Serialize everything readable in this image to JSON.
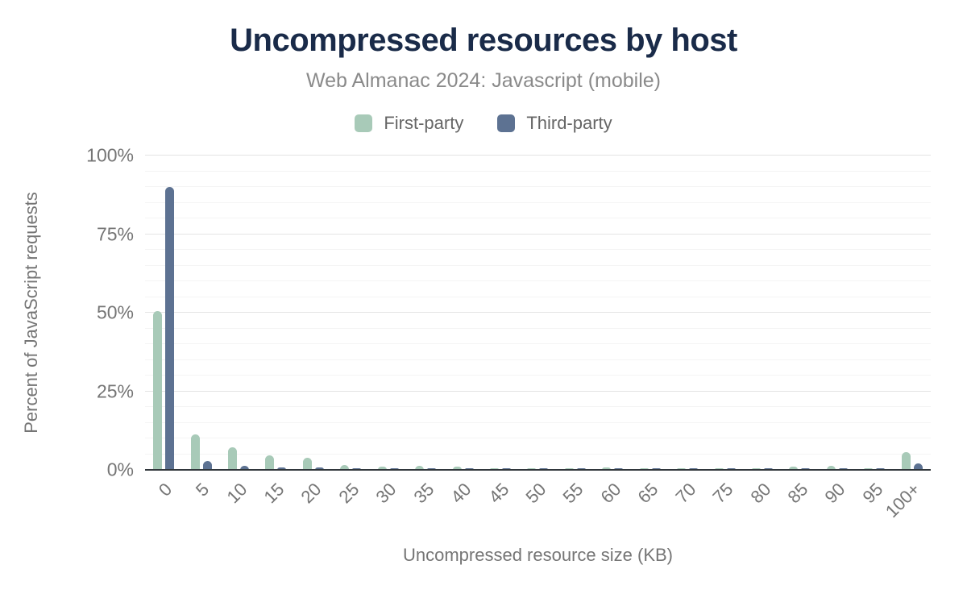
{
  "header": {
    "title": "Uncompressed resources by host",
    "subtitle": "Web Almanac 2024: Javascript (mobile)"
  },
  "chart_data": {
    "type": "bar",
    "title": "Uncompressed resources by host",
    "subtitle": "Web Almanac 2024: Javascript (mobile)",
    "xlabel": "Uncompressed resource size (KB)",
    "ylabel": "Percent of JavaScript requests",
    "ylim": [
      0,
      100
    ],
    "grid": true,
    "minor_gridline_step": 5,
    "major_gridline_step": 25,
    "legend_position": "top",
    "y_ticks": [
      {
        "value": 0,
        "label": "0%"
      },
      {
        "value": 25,
        "label": "25%"
      },
      {
        "value": 50,
        "label": "50%"
      },
      {
        "value": 75,
        "label": "75%"
      },
      {
        "value": 100,
        "label": "100%"
      }
    ],
    "categories": [
      "0",
      "5",
      "10",
      "15",
      "20",
      "25",
      "30",
      "35",
      "40",
      "45",
      "50",
      "55",
      "60",
      "65",
      "70",
      "75",
      "80",
      "85",
      "90",
      "95",
      "100+"
    ],
    "series": [
      {
        "name": "First-party",
        "color": "#a8cab8",
        "values": [
          50.4,
          11.2,
          7.2,
          4.5,
          3.8,
          1.5,
          1.1,
          1.2,
          1.0,
          0.6,
          0.6,
          0.6,
          0.7,
          0.6,
          0.3,
          0.4,
          0.5,
          1.1,
          1.3,
          0.3,
          5.6
        ]
      },
      {
        "name": "Third-party",
        "color": "#5d7292",
        "values": [
          89.9,
          2.7,
          1.2,
          0.8,
          0.7,
          0.3,
          0.3,
          0.3,
          0.3,
          0.2,
          0.3,
          0.2,
          0.3,
          0.3,
          0.3,
          0.3,
          0.3,
          0.3,
          0.3,
          0.3,
          2.1
        ]
      }
    ]
  },
  "theme": {
    "title_color": "#1a2b49",
    "subtitle_color": "#8a8a8a",
    "tick_color": "#757575",
    "legend_text_color": "#666666",
    "axis_line_color": "#30363b",
    "major_gridline_color": "#e4e4e4",
    "minor_gridline_color": "#f4f4f4",
    "background": "#ffffff"
  }
}
